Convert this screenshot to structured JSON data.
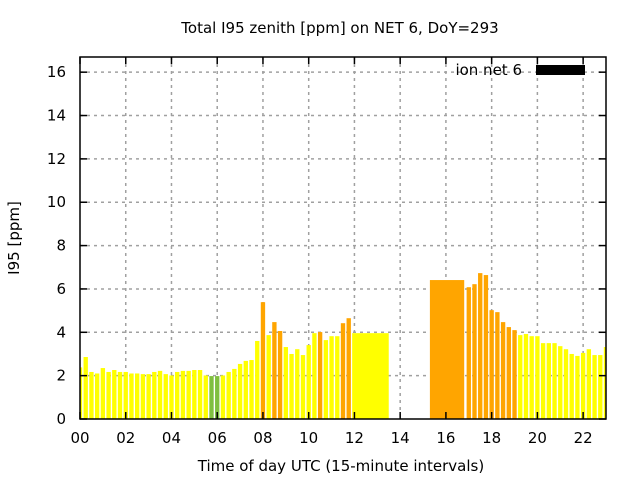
{
  "chart_data": {
    "type": "bar",
    "title": "Total I95 zenith [ppm] on NET 6, DoY=293",
    "xlabel": "Time of day UTC (15-minute intervals)",
    "ylabel": "I95 [ppm]",
    "xlim": [
      0,
      23
    ],
    "ylim": [
      0,
      16.7
    ],
    "xticks": [
      0,
      2,
      4,
      6,
      8,
      10,
      12,
      14,
      16,
      18,
      20,
      22
    ],
    "xtick_labels": [
      "00",
      "02",
      "04",
      "06",
      "08",
      "10",
      "12",
      "14",
      "16",
      "18",
      "20",
      "22"
    ],
    "yticks": [
      0,
      2,
      4,
      6,
      8,
      10,
      12,
      14,
      16
    ],
    "ytick_labels": [
      "0",
      "2",
      "4",
      "6",
      "8",
      "10",
      "12",
      "14",
      "16"
    ],
    "grid": true,
    "legend": {
      "label": "ion net 6",
      "color": "#000000",
      "placement": "top-right"
    },
    "color_scale": [
      {
        "below": 2,
        "color": "#7fbf3f"
      },
      {
        "below": 4,
        "color": "#ffff00"
      },
      {
        "below": 999,
        "color": "#ffa500"
      }
    ],
    "interval_hours": 0.25,
    "series": [
      {
        "start_hour": 0.0,
        "values": [
          2.38,
          2.86,
          2.17,
          2.1,
          2.35,
          2.17,
          2.26,
          2.17,
          2.17,
          2.1,
          2.1,
          2.07,
          2.07,
          2.17,
          2.22,
          2.07,
          2.01,
          2.17,
          2.22,
          2.22,
          2.26,
          2.26,
          2.01,
          1.98,
          1.98,
          2.01,
          2.17,
          2.31,
          2.54,
          2.68,
          2.72,
          3.6,
          5.39,
          3.87,
          4.47,
          4.06,
          3.32,
          3.0,
          3.22,
          2.95,
          3.41,
          3.96,
          4.01,
          3.64,
          3.82,
          3.82,
          4.42,
          4.65
        ]
      },
      {
        "start_hour": 17.0,
        "values": [
          6.08,
          6.22,
          6.73,
          6.64,
          5.02,
          4.93,
          4.47,
          4.24,
          4.1,
          3.87,
          3.92,
          3.82,
          3.82,
          3.5,
          3.5,
          3.5,
          3.36,
          3.22,
          3.0,
          2.91,
          3.05,
          3.22,
          2.95,
          2.95,
          3.32
        ]
      }
    ],
    "wide_bars": [
      {
        "from_hour": 11.9,
        "to_hour": 13.5,
        "value": 3.96
      },
      {
        "from_hour": 15.3,
        "to_hour": 16.8,
        "value": 6.41
      }
    ]
  }
}
